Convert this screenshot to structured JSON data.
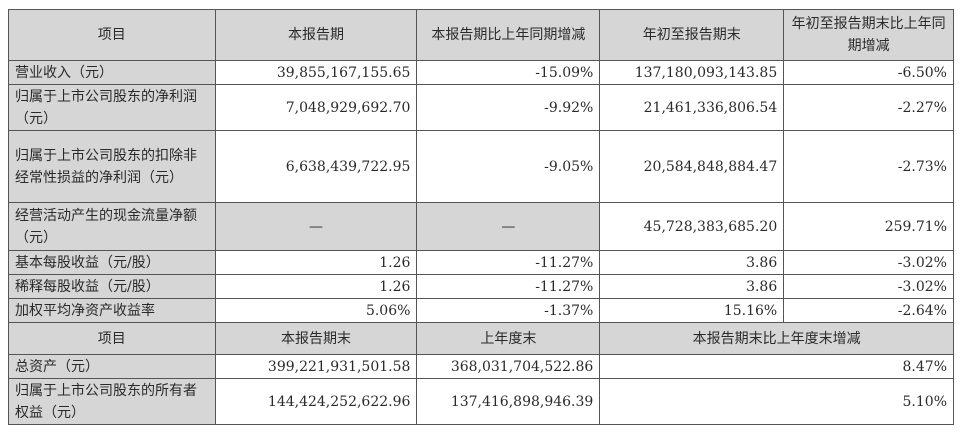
{
  "header1": [
    "项目",
    "本报告期",
    "本报告期比上年同期增减",
    "年初至报告期末",
    "年初至报告期末比上年同期增减"
  ],
  "rows1": [
    {
      "item": "营业收入（元）",
      "v1": "39,855,167,155.65",
      "v2": "-15.09%",
      "v3": "137,180,093,143.85",
      "v4": "-6.50%"
    },
    {
      "item": "归属于上市公司股东的净利润（元）",
      "v1": "7,048,929,692.70",
      "v2": "-9.92%",
      "v3": "21,461,336,806.54",
      "v4": "-2.27%"
    },
    {
      "item": "归属于上市公司股东的扣除非经常性损益的净利润（元）",
      "v1": "6,638,439,722.95",
      "v2": "-9.05%",
      "v3": "20,584,848,884.47",
      "v4": "-2.73%"
    },
    {
      "item": "经营活动产生的现金流量净额（元）",
      "v1": "—",
      "v2": "—",
      "v3": "45,728,383,685.20",
      "v4": "259.71%"
    },
    {
      "item": "基本每股收益（元/股）",
      "v1": "1.26",
      "v2": "-11.27%",
      "v3": "3.86",
      "v4": "-3.02%"
    },
    {
      "item": "稀释每股收益（元/股）",
      "v1": "1.26",
      "v2": "-11.27%",
      "v3": "3.86",
      "v4": "-3.02%"
    },
    {
      "item": "加权平均净资产收益率",
      "v1": "5.06%",
      "v2": "-1.37%",
      "v3": "15.16%",
      "v4": "-2.64%"
    }
  ],
  "header2": [
    "项目",
    "本报告期末",
    "上年度末",
    "本报告期末比上年度末增减"
  ],
  "rows2": [
    {
      "item": "总资产（元）",
      "v1": "399,221,931,501.58",
      "v2": "368,031,704,522.86",
      "v3": "8.47%"
    },
    {
      "item": "归属于上市公司股东的所有者权益（元）",
      "v1": "144,424,252,622.96",
      "v2": "137,416,898,946.39",
      "v3": "5.10%"
    }
  ]
}
